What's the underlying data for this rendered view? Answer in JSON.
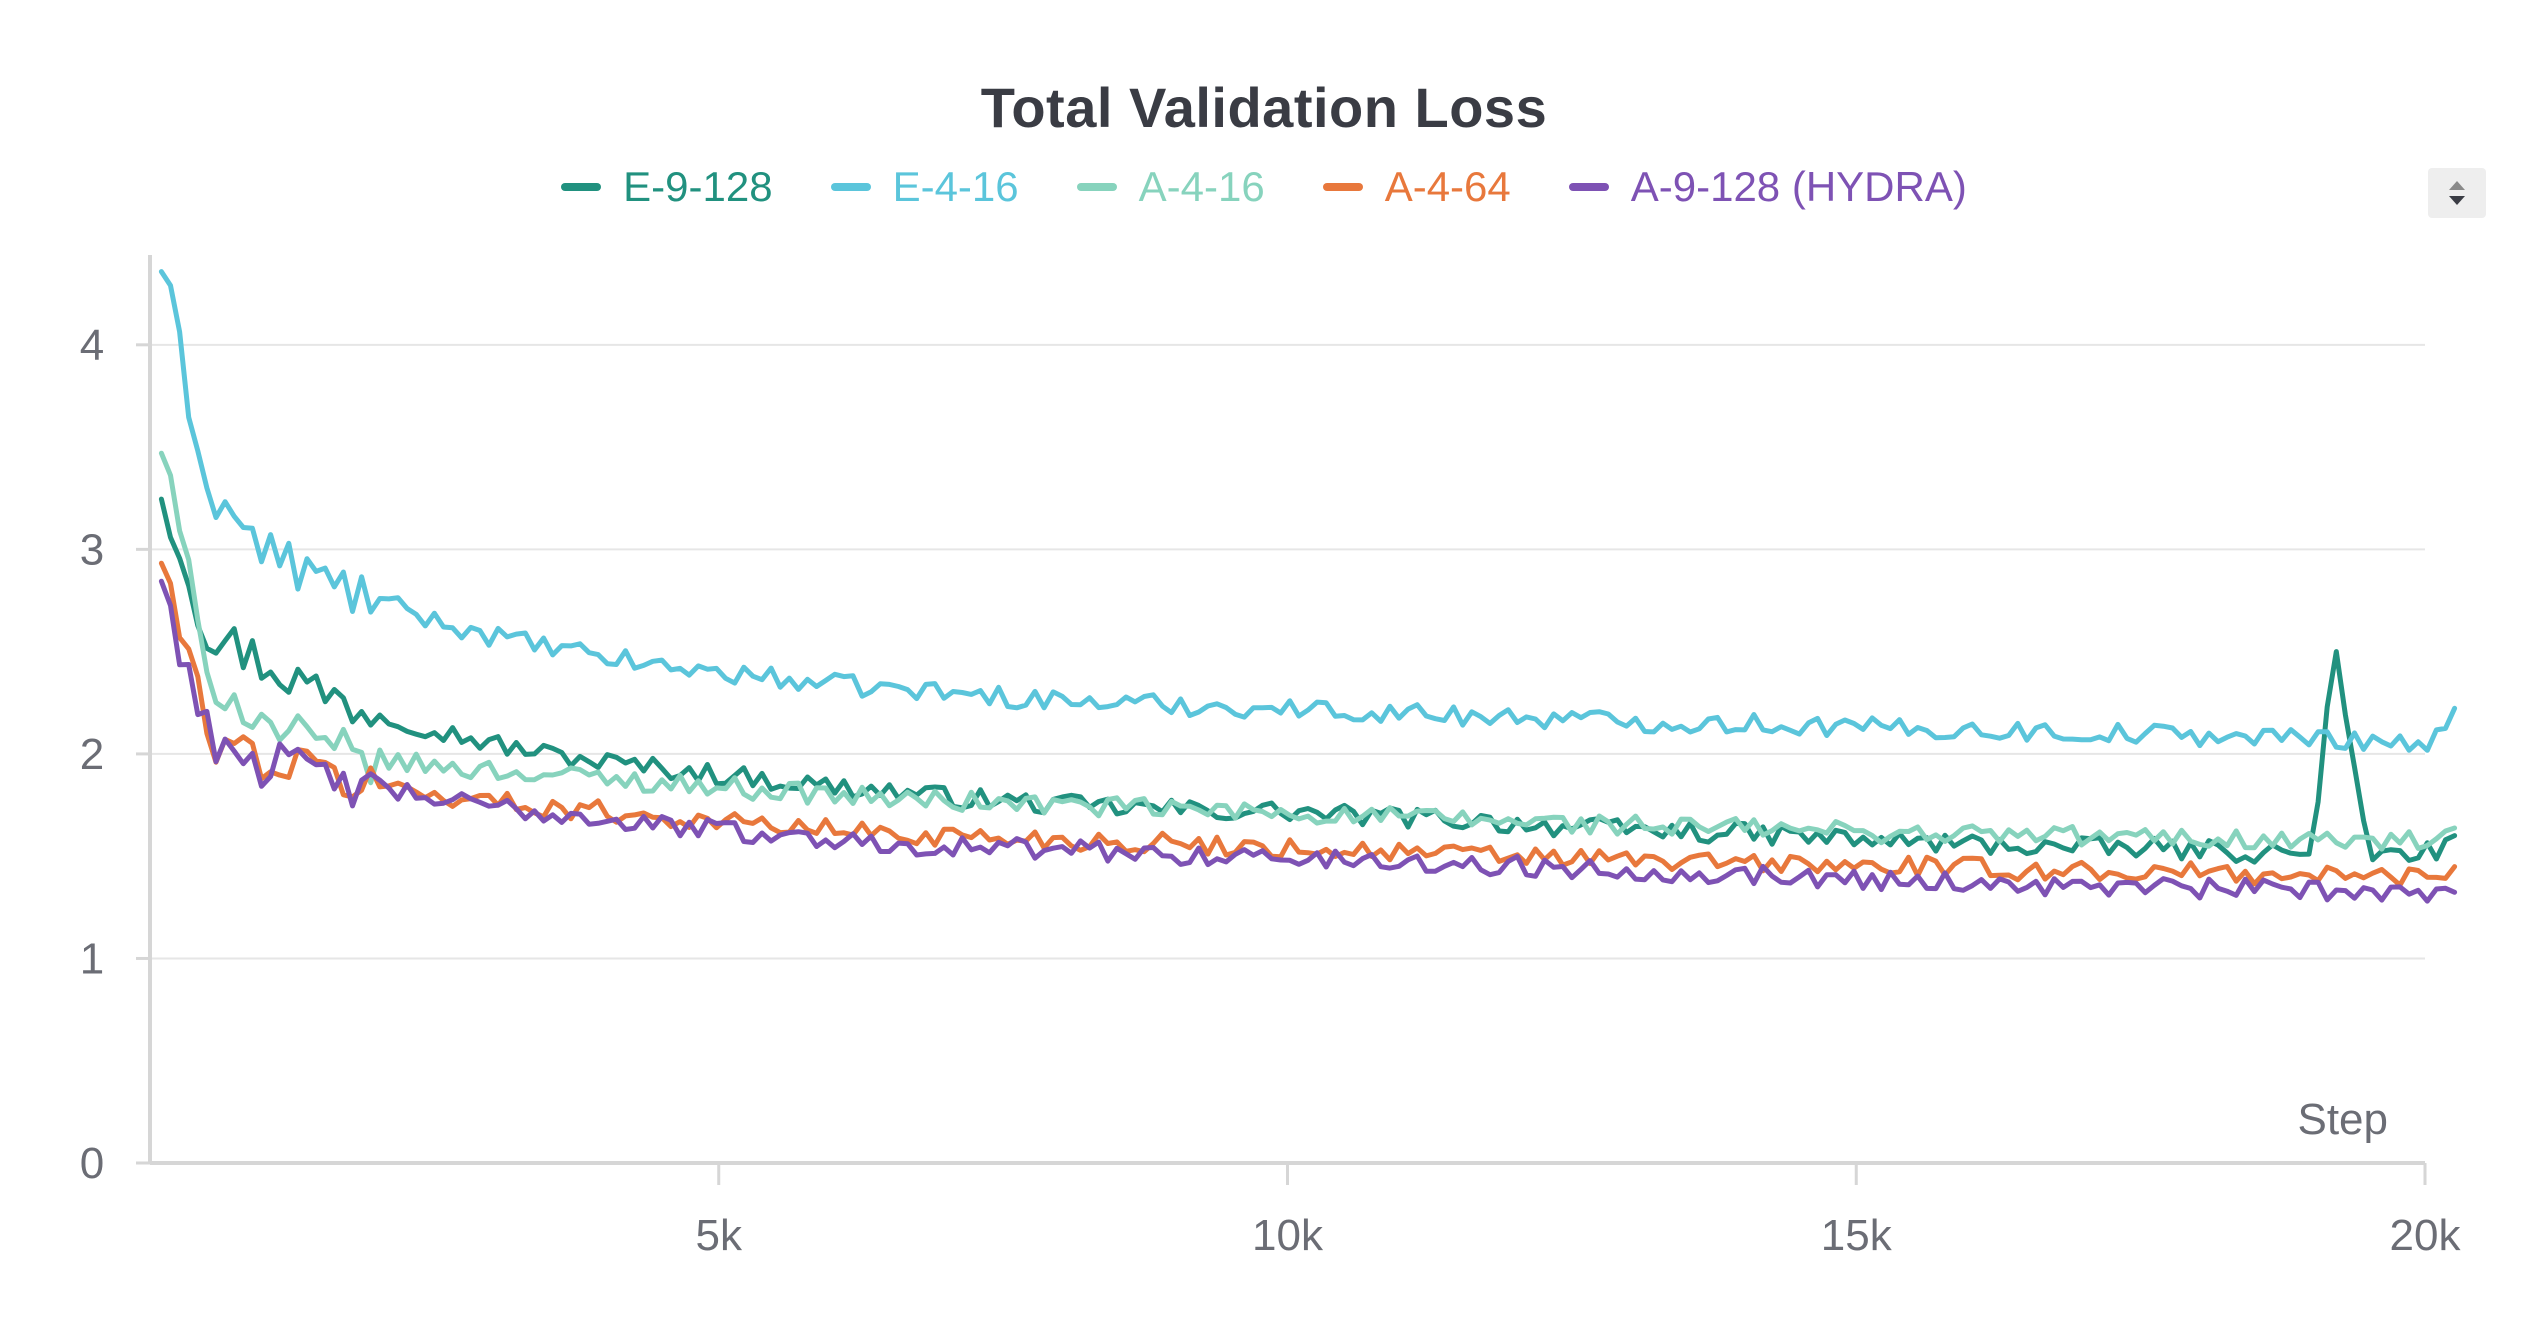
{
  "chart_data": {
    "type": "line",
    "title": "Total Validation Loss",
    "xlabel": "Step",
    "ylabel": "",
    "xlim": [
      0,
      20300
    ],
    "ylim": [
      0,
      4.4
    ],
    "x_ticks": [
      {
        "value": 5000,
        "label": "5k"
      },
      {
        "value": 10000,
        "label": "10k"
      },
      {
        "value": 15000,
        "label": "15k"
      },
      {
        "value": 20000,
        "label": "20k"
      }
    ],
    "y_ticks": [
      {
        "value": 0,
        "label": "0"
      },
      {
        "value": 1,
        "label": "1"
      },
      {
        "value": 2,
        "label": "2"
      },
      {
        "value": 3,
        "label": "3"
      },
      {
        "value": 4,
        "label": "4"
      }
    ],
    "grid": true,
    "legend_position": "top-center",
    "series": [
      {
        "name": "E-9-128",
        "color": "#21917f",
        "x": [
          100,
          500,
          1000,
          1500,
          2000,
          2500,
          3000,
          3500,
          4000,
          4500,
          5000,
          5500,
          6000,
          6500,
          7000,
          7500,
          8000,
          8500,
          9000,
          9500,
          10000,
          10500,
          11000,
          11500,
          12000,
          12500,
          13000,
          13500,
          14000,
          14500,
          15000,
          15500,
          16000,
          16500,
          17000,
          17500,
          18000,
          18500,
          19000,
          19200,
          19500,
          20000,
          20300
        ],
        "y": [
          3.3,
          2.6,
          2.45,
          2.3,
          2.2,
          2.12,
          2.05,
          2.0,
          1.96,
          1.93,
          1.9,
          1.87,
          1.84,
          1.82,
          1.79,
          1.77,
          1.75,
          1.74,
          1.73,
          1.72,
          1.72,
          1.7,
          1.69,
          1.68,
          1.66,
          1.64,
          1.63,
          1.62,
          1.61,
          1.6,
          1.58,
          1.57,
          1.56,
          1.55,
          1.54,
          1.54,
          1.53,
          1.52,
          1.51,
          2.5,
          1.5,
          1.52,
          1.56
        ]
      },
      {
        "name": "E-4-16",
        "color": "#5bc5db",
        "x": [
          100,
          500,
          1000,
          1500,
          2000,
          2500,
          3000,
          3500,
          4000,
          4500,
          5000,
          5500,
          6000,
          6500,
          7000,
          7500,
          8000,
          8500,
          9000,
          9500,
          10000,
          10500,
          11000,
          11500,
          12000,
          12500,
          13000,
          13500,
          14000,
          14500,
          15000,
          15500,
          16000,
          16500,
          17000,
          17500,
          18000,
          18500,
          19000,
          19500,
          20000,
          20300
        ],
        "y": [
          4.4,
          3.3,
          3.0,
          2.85,
          2.75,
          2.65,
          2.58,
          2.52,
          2.47,
          2.43,
          2.4,
          2.37,
          2.34,
          2.32,
          2.3,
          2.28,
          2.26,
          2.25,
          2.24,
          2.23,
          2.22,
          2.21,
          2.2,
          2.19,
          2.18,
          2.17,
          2.16,
          2.15,
          2.15,
          2.14,
          2.13,
          2.12,
          2.12,
          2.11,
          2.1,
          2.1,
          2.09,
          2.08,
          2.08,
          2.07,
          2.05,
          2.2
        ]
      },
      {
        "name": "A-4-16",
        "color": "#87d3bd",
        "x": [
          100,
          500,
          1000,
          1500,
          2000,
          2500,
          3000,
          3500,
          4000,
          4500,
          5000,
          5500,
          6000,
          6500,
          7000,
          7500,
          8000,
          8500,
          9000,
          9500,
          10000,
          10500,
          11000,
          11500,
          12000,
          12500,
          13000,
          13500,
          14000,
          14500,
          15000,
          15500,
          16000,
          16500,
          17000,
          17500,
          18000,
          18500,
          19000,
          19500,
          20000,
          20300
        ],
        "y": [
          3.5,
          2.4,
          2.15,
          2.02,
          1.97,
          1.94,
          1.92,
          1.9,
          1.88,
          1.86,
          1.84,
          1.82,
          1.8,
          1.78,
          1.77,
          1.76,
          1.75,
          1.74,
          1.73,
          1.72,
          1.71,
          1.7,
          1.69,
          1.68,
          1.67,
          1.66,
          1.65,
          1.64,
          1.64,
          1.63,
          1.62,
          1.61,
          1.61,
          1.6,
          1.6,
          1.59,
          1.59,
          1.58,
          1.58,
          1.57,
          1.57,
          1.62
        ]
      },
      {
        "name": "A-4-64",
        "color": "#e8783c",
        "x": [
          100,
          500,
          1000,
          1500,
          2000,
          2500,
          3000,
          3500,
          4000,
          4500,
          5000,
          5500,
          6000,
          6500,
          7000,
          7500,
          8000,
          8500,
          9000,
          9500,
          10000,
          10500,
          11000,
          11500,
          12000,
          12500,
          13000,
          13500,
          14000,
          14500,
          15000,
          15500,
          16000,
          16500,
          17000,
          17500,
          18000,
          18500,
          19000,
          19500,
          20000,
          20300
        ],
        "y": [
          2.95,
          2.1,
          1.97,
          1.9,
          1.85,
          1.8,
          1.77,
          1.74,
          1.72,
          1.69,
          1.67,
          1.65,
          1.63,
          1.61,
          1.6,
          1.59,
          1.58,
          1.57,
          1.56,
          1.55,
          1.54,
          1.53,
          1.52,
          1.51,
          1.5,
          1.49,
          1.48,
          1.47,
          1.47,
          1.46,
          1.45,
          1.45,
          1.44,
          1.43,
          1.43,
          1.42,
          1.42,
          1.41,
          1.41,
          1.4,
          1.4,
          1.45
        ]
      },
      {
        "name": "A-9-128 (HYDRA)",
        "color": "#7e52b4",
        "x": [
          100,
          500,
          1000,
          1500,
          2000,
          2500,
          3000,
          3500,
          4000,
          4500,
          5000,
          5500,
          6000,
          6500,
          7000,
          7500,
          8000,
          8500,
          9000,
          9500,
          10000,
          10500,
          11000,
          11500,
          12000,
          12500,
          13000,
          13500,
          14000,
          14500,
          15000,
          15500,
          16000,
          16500,
          17000,
          17500,
          18000,
          18500,
          19000,
          19500,
          20000,
          20300
        ],
        "y": [
          2.85,
          2.1,
          1.96,
          1.88,
          1.83,
          1.78,
          1.74,
          1.71,
          1.68,
          1.65,
          1.63,
          1.6,
          1.58,
          1.56,
          1.55,
          1.54,
          1.53,
          1.52,
          1.51,
          1.5,
          1.49,
          1.48,
          1.47,
          1.46,
          1.45,
          1.44,
          1.43,
          1.42,
          1.41,
          1.4,
          1.39,
          1.38,
          1.37,
          1.36,
          1.35,
          1.35,
          1.34,
          1.34,
          1.33,
          1.33,
          1.32,
          1.38
        ]
      }
    ]
  }
}
